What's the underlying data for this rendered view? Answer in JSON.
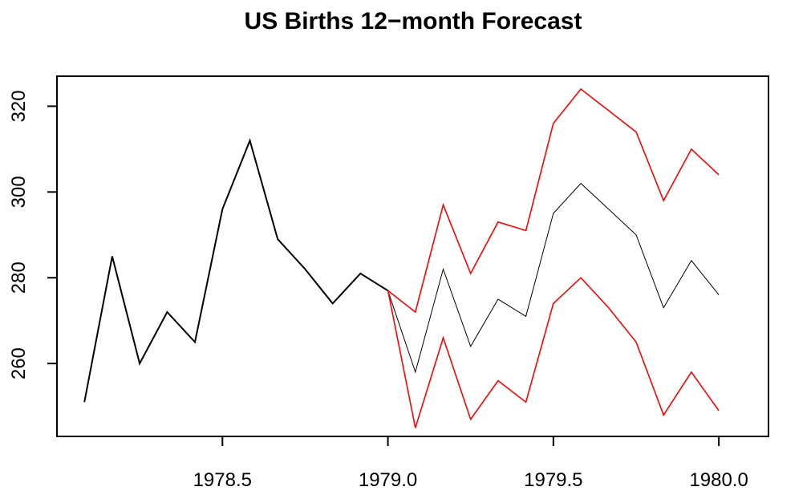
{
  "chart_data": {
    "type": "line",
    "title": "US Births 12−month Forecast",
    "xlabel": "",
    "ylabel": "",
    "xlim": [
      1978.0,
      1980.15
    ],
    "ylim": [
      243,
      327
    ],
    "x_ticks": [
      1978.5,
      1979.0,
      1979.5,
      1980.0
    ],
    "x_tick_labels": [
      "1978.5",
      "1979.0",
      "1979.5",
      "1980.0"
    ],
    "y_ticks": [
      260,
      280,
      300,
      320
    ],
    "y_tick_labels": [
      "260",
      "280",
      "300",
      "320"
    ],
    "grid": false,
    "series": [
      {
        "role": "observed",
        "color": "#000000",
        "x": [
          1978.083,
          1978.167,
          1978.25,
          1978.333,
          1978.417,
          1978.5,
          1978.583,
          1978.667,
          1978.75,
          1978.833,
          1978.917,
          1979.0
        ],
        "values": [
          251,
          285,
          260,
          272,
          265,
          296,
          312,
          289,
          282,
          274,
          281,
          277
        ]
      },
      {
        "role": "forecast",
        "color": "#000000",
        "x": [
          1979.0,
          1979.083,
          1979.167,
          1979.25,
          1979.333,
          1979.417,
          1979.5,
          1979.583,
          1979.667,
          1979.75,
          1979.833,
          1979.917,
          1980.0
        ],
        "values": [
          277,
          258,
          282,
          264,
          275,
          271,
          295,
          302,
          296,
          290,
          273,
          284,
          276
        ]
      },
      {
        "role": "upper",
        "color": "#ff0000",
        "x": [
          1979.0,
          1979.083,
          1979.167,
          1979.25,
          1979.333,
          1979.417,
          1979.5,
          1979.583,
          1979.667,
          1979.75,
          1979.833,
          1979.917,
          1980.0
        ],
        "values": [
          277,
          272,
          297,
          281,
          293,
          291,
          316,
          324,
          319,
          314,
          298,
          310,
          304
        ]
      },
      {
        "role": "lower",
        "color": "#ff0000",
        "x": [
          1979.0,
          1979.083,
          1979.167,
          1979.25,
          1979.333,
          1979.417,
          1979.5,
          1979.583,
          1979.667,
          1979.75,
          1979.833,
          1979.917,
          1980.0
        ],
        "values": [
          277,
          245,
          266,
          247,
          256,
          251,
          274,
          280,
          273,
          265,
          248,
          258,
          249
        ]
      }
    ]
  }
}
